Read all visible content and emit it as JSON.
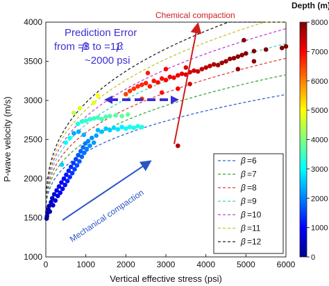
{
  "chart_data": {
    "type": "scatter",
    "xlabel": "Vertical effective stress (psi)",
    "ylabel": "P-wave velocity (m/s)",
    "xlim": [
      0,
      6000
    ],
    "ylim": [
      1000,
      4000
    ],
    "xticks": [
      "0",
      "1000",
      "2000",
      "3000",
      "4000",
      "5000",
      "6000"
    ],
    "yticks": [
      "1000",
      "1500",
      "2000",
      "2500",
      "3000",
      "3500",
      "4000"
    ],
    "grid": false,
    "legend_position": "bottom-right",
    "curve_model": "V = 1500 + a * stress^0.35",
    "series": [
      {
        "name": "β=6",
        "label": "=6",
        "color": "#2f5fd0",
        "a": 75
      },
      {
        "name": "β=7",
        "label": "=7",
        "color": "#3aa63a",
        "a": 87
      },
      {
        "name": "β=8",
        "label": "=8",
        "color": "#e03c3c",
        "a": 97
      },
      {
        "name": "β=9",
        "label": "=9",
        "color": "#46d0b8",
        "a": 106
      },
      {
        "name": "β=10",
        "label": "=10",
        "color": "#c23ed6",
        "a": 115
      },
      {
        "name": "β=11",
        "label": "=11",
        "color": "#c9c22b",
        "a": 123
      },
      {
        "name": "β=12",
        "label": "=12",
        "color": "#222222",
        "a": 131
      }
    ],
    "colorbar": {
      "title": "Depth (m)",
      "min": 0,
      "max": 8000,
      "ticks": [
        "0",
        "1000",
        "2000",
        "3000",
        "4000",
        "5000",
        "6000",
        "7000",
        "8000"
      ]
    },
    "points": [
      {
        "x": 20,
        "y": 1490,
        "depth": 150
      },
      {
        "x": 30,
        "y": 1520,
        "depth": 200
      },
      {
        "x": 40,
        "y": 1560,
        "depth": 250
      },
      {
        "x": 60,
        "y": 1610,
        "depth": 300
      },
      {
        "x": 80,
        "y": 1650,
        "depth": 400
      },
      {
        "x": 100,
        "y": 1580,
        "depth": 450
      },
      {
        "x": 130,
        "y": 1700,
        "depth": 500
      },
      {
        "x": 160,
        "y": 1750,
        "depth": 550
      },
      {
        "x": 180,
        "y": 1660,
        "depth": 600
      },
      {
        "x": 210,
        "y": 1800,
        "depth": 650
      },
      {
        "x": 240,
        "y": 1720,
        "depth": 700
      },
      {
        "x": 270,
        "y": 1850,
        "depth": 750
      },
      {
        "x": 300,
        "y": 1780,
        "depth": 800
      },
      {
        "x": 330,
        "y": 1900,
        "depth": 850
      },
      {
        "x": 360,
        "y": 1820,
        "depth": 900
      },
      {
        "x": 390,
        "y": 1950,
        "depth": 950
      },
      {
        "x": 420,
        "y": 1870,
        "depth": 1000
      },
      {
        "x": 450,
        "y": 2000,
        "depth": 1050
      },
      {
        "x": 480,
        "y": 1920,
        "depth": 1100
      },
      {
        "x": 510,
        "y": 2050,
        "depth": 1150
      },
      {
        "x": 540,
        "y": 1970,
        "depth": 1200
      },
      {
        "x": 570,
        "y": 2100,
        "depth": 1250
      },
      {
        "x": 600,
        "y": 2020,
        "depth": 1300
      },
      {
        "x": 630,
        "y": 2150,
        "depth": 1350
      },
      {
        "x": 660,
        "y": 2070,
        "depth": 1400
      },
      {
        "x": 690,
        "y": 2200,
        "depth": 1450
      },
      {
        "x": 720,
        "y": 2120,
        "depth": 1500
      },
      {
        "x": 750,
        "y": 2250,
        "depth": 1550
      },
      {
        "x": 780,
        "y": 2170,
        "depth": 1600
      },
      {
        "x": 810,
        "y": 2300,
        "depth": 1650
      },
      {
        "x": 840,
        "y": 2220,
        "depth": 1700
      },
      {
        "x": 870,
        "y": 2350,
        "depth": 1750
      },
      {
        "x": 900,
        "y": 2280,
        "depth": 1800
      },
      {
        "x": 930,
        "y": 2400,
        "depth": 1850
      },
      {
        "x": 960,
        "y": 2330,
        "depth": 1900
      },
      {
        "x": 990,
        "y": 2450,
        "depth": 1950
      },
      {
        "x": 1020,
        "y": 2380,
        "depth": 2000
      },
      {
        "x": 1060,
        "y": 2480,
        "depth": 2050
      },
      {
        "x": 1100,
        "y": 2420,
        "depth": 2100
      },
      {
        "x": 1150,
        "y": 2520,
        "depth": 2150
      },
      {
        "x": 1200,
        "y": 2460,
        "depth": 2200
      },
      {
        "x": 1260,
        "y": 2550,
        "depth": 2250
      },
      {
        "x": 700,
        "y": 2580,
        "depth": 2300
      },
      {
        "x": 820,
        "y": 2600,
        "depth": 2350
      },
      {
        "x": 950,
        "y": 2560,
        "depth": 2400
      },
      {
        "x": 1300,
        "y": 2620,
        "depth": 2450
      },
      {
        "x": 1400,
        "y": 2600,
        "depth": 2500
      },
      {
        "x": 1500,
        "y": 2640,
        "depth": 2550
      },
      {
        "x": 1600,
        "y": 2620,
        "depth": 2600
      },
      {
        "x": 1700,
        "y": 2650,
        "depth": 2700
      },
      {
        "x": 1800,
        "y": 2630,
        "depth": 2800
      },
      {
        "x": 1900,
        "y": 2660,
        "depth": 2900
      },
      {
        "x": 2000,
        "y": 2640,
        "depth": 3000
      },
      {
        "x": 2100,
        "y": 2660,
        "depth": 3100
      },
      {
        "x": 2200,
        "y": 2650,
        "depth": 3150
      },
      {
        "x": 2300,
        "y": 2670,
        "depth": 3200
      },
      {
        "x": 2400,
        "y": 2660,
        "depth": 3250
      },
      {
        "x": 500,
        "y": 2460,
        "depth": 3050
      },
      {
        "x": 600,
        "y": 2520,
        "depth": 3100
      },
      {
        "x": 800,
        "y": 2700,
        "depth": 3200
      },
      {
        "x": 900,
        "y": 2730,
        "depth": 3300
      },
      {
        "x": 1000,
        "y": 2740,
        "depth": 3350
      },
      {
        "x": 1100,
        "y": 2760,
        "depth": 3400
      },
      {
        "x": 1200,
        "y": 2770,
        "depth": 3450
      },
      {
        "x": 1300,
        "y": 2780,
        "depth": 3500
      },
      {
        "x": 1400,
        "y": 2760,
        "depth": 3550
      },
      {
        "x": 1500,
        "y": 2790,
        "depth": 3600
      },
      {
        "x": 1600,
        "y": 2800,
        "depth": 3650
      },
      {
        "x": 1750,
        "y": 2810,
        "depth": 3700
      },
      {
        "x": 1900,
        "y": 2800,
        "depth": 3750
      },
      {
        "x": 2050,
        "y": 2820,
        "depth": 3800
      },
      {
        "x": 400,
        "y": 2180,
        "depth": 2600
      },
      {
        "x": 700,
        "y": 2840,
        "depth": 4500
      },
      {
        "x": 1200,
        "y": 2970,
        "depth": 4800
      },
      {
        "x": 1300,
        "y": 3060,
        "depth": 5000
      },
      {
        "x": 850,
        "y": 2900,
        "depth": 4700
      },
      {
        "x": 2000,
        "y": 3080,
        "depth": 6500
      },
      {
        "x": 2100,
        "y": 3120,
        "depth": 6550
      },
      {
        "x": 2200,
        "y": 3150,
        "depth": 6600
      },
      {
        "x": 2300,
        "y": 3180,
        "depth": 6650
      },
      {
        "x": 2400,
        "y": 3200,
        "depth": 6700
      },
      {
        "x": 2500,
        "y": 3220,
        "depth": 6750
      },
      {
        "x": 2600,
        "y": 3180,
        "depth": 6800
      },
      {
        "x": 2700,
        "y": 3250,
        "depth": 6850
      },
      {
        "x": 2800,
        "y": 3230,
        "depth": 6900
      },
      {
        "x": 2900,
        "y": 3280,
        "depth": 6950
      },
      {
        "x": 3000,
        "y": 3260,
        "depth": 7000
      },
      {
        "x": 3100,
        "y": 3300,
        "depth": 7050
      },
      {
        "x": 3200,
        "y": 3290,
        "depth": 7100
      },
      {
        "x": 3300,
        "y": 3320,
        "depth": 7150
      },
      {
        "x": 3400,
        "y": 3340,
        "depth": 7200
      },
      {
        "x": 3500,
        "y": 3330,
        "depth": 7250
      },
      {
        "x": 3600,
        "y": 3360,
        "depth": 7300
      },
      {
        "x": 3700,
        "y": 3380,
        "depth": 7350
      },
      {
        "x": 3800,
        "y": 3370,
        "depth": 7400
      },
      {
        "x": 3900,
        "y": 3400,
        "depth": 7450
      },
      {
        "x": 4000,
        "y": 3420,
        "depth": 7500
      },
      {
        "x": 4100,
        "y": 3440,
        "depth": 7550
      },
      {
        "x": 4200,
        "y": 3460,
        "depth": 7600
      },
      {
        "x": 4300,
        "y": 3450,
        "depth": 7650
      },
      {
        "x": 4400,
        "y": 3480,
        "depth": 7700
      },
      {
        "x": 4500,
        "y": 3500,
        "depth": 7750
      },
      {
        "x": 4600,
        "y": 3530,
        "depth": 7800
      },
      {
        "x": 4700,
        "y": 3540,
        "depth": 7850
      },
      {
        "x": 4800,
        "y": 3560,
        "depth": 7900
      },
      {
        "x": 4900,
        "y": 3580,
        "depth": 7950
      },
      {
        "x": 5000,
        "y": 3600,
        "depth": 8000
      },
      {
        "x": 5200,
        "y": 3630,
        "depth": 8000
      },
      {
        "x": 5500,
        "y": 3650,
        "depth": 8000
      },
      {
        "x": 5900,
        "y": 3670,
        "depth": 8000
      },
      {
        "x": 6000,
        "y": 3690,
        "depth": 8000
      },
      {
        "x": 4950,
        "y": 3770,
        "depth": 8000
      },
      {
        "x": 5200,
        "y": 3500,
        "depth": 7900
      },
      {
        "x": 4800,
        "y": 3400,
        "depth": 7850
      },
      {
        "x": 3600,
        "y": 3210,
        "depth": 7300
      },
      {
        "x": 2400,
        "y": 3020,
        "depth": 6600
      },
      {
        "x": 2900,
        "y": 3100,
        "depth": 6900
      },
      {
        "x": 3300,
        "y": 3150,
        "depth": 7100
      },
      {
        "x": 2550,
        "y": 3350,
        "depth": 6800
      },
      {
        "x": 3000,
        "y": 3400,
        "depth": 7000
      },
      {
        "x": 3500,
        "y": 3420,
        "depth": 7250
      },
      {
        "x": 3300,
        "y": 2420,
        "depth": 7600
      }
    ],
    "annotations": {
      "prediction_error": [
        "Prediction Error",
        "from  =8 to  =11:",
        "~2000 psi"
      ],
      "chemical": "Chemical compaction",
      "mechanical": "Mechanical compaction"
    }
  }
}
